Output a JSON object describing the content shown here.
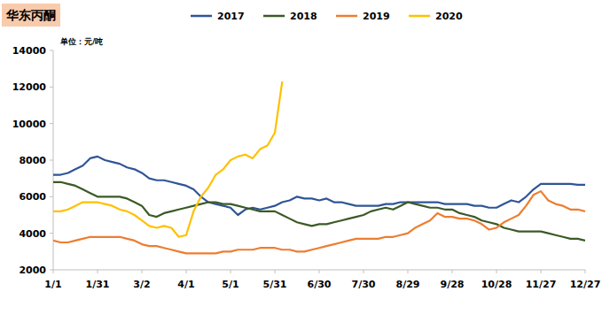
{
  "chart_data": {
    "type": "line",
    "title": "华东丙酮",
    "ylabel": "单位：元/吨",
    "legend": "top",
    "grid": false,
    "categories": [
      "1/1",
      null,
      null,
      null,
      null,
      null,
      "1/31",
      null,
      null,
      null,
      null,
      null,
      "3/2",
      null,
      null,
      null,
      null,
      null,
      "4/1",
      null,
      null,
      null,
      null,
      null,
      "5/1",
      null,
      null,
      null,
      null,
      null,
      "5/31",
      null,
      null,
      null,
      null,
      null,
      "6/30",
      null,
      null,
      null,
      null,
      null,
      "7/30",
      null,
      null,
      null,
      null,
      null,
      "8/29",
      null,
      null,
      null,
      null,
      null,
      "9/28",
      null,
      null,
      null,
      null,
      null,
      "10/28",
      null,
      null,
      null,
      null,
      null,
      "11/27",
      null,
      null,
      null,
      null,
      null,
      "12/27"
    ],
    "ylim": [
      2000,
      14000
    ],
    "yticks": [
      2000,
      4000,
      6000,
      8000,
      10000,
      12000,
      14000
    ],
    "series": [
      {
        "name": "2017",
        "color": "#2f5597",
        "values": [
          7200,
          7200,
          7300,
          7500,
          7700,
          8100,
          8200,
          8000,
          7900,
          7800,
          7600,
          7500,
          7300,
          7000,
          6900,
          6900,
          6800,
          6700,
          6600,
          6400,
          6000,
          5700,
          5600,
          5500,
          5400,
          5000,
          5300,
          5400,
          5300,
          5400,
          5500,
          5700,
          5800,
          6000,
          5900,
          5900,
          5800,
          5900,
          5700,
          5700,
          5600,
          5500,
          5500,
          5500,
          5500,
          5600,
          5600,
          5700,
          5700,
          5700,
          5700,
          5700,
          5700,
          5600,
          5600,
          5600,
          5600,
          5500,
          5500,
          5400,
          5400,
          5600,
          5800,
          5700,
          6000,
          6400,
          6700,
          6700,
          6700,
          6700,
          6700,
          6650,
          6650
        ]
      },
      {
        "name": "2018",
        "color": "#3b5a26",
        "values": [
          6800,
          6800,
          6700,
          6600,
          6400,
          6200,
          6000,
          6000,
          6000,
          6000,
          5900,
          5700,
          5500,
          5000,
          4900,
          5100,
          5200,
          5300,
          5400,
          5500,
          5600,
          5700,
          5700,
          5600,
          5600,
          5500,
          5400,
          5300,
          5200,
          5200,
          5200,
          5000,
          4800,
          4600,
          4500,
          4400,
          4500,
          4500,
          4600,
          4700,
          4800,
          4900,
          5000,
          5200,
          5300,
          5400,
          5300,
          5500,
          5700,
          5600,
          5500,
          5400,
          5400,
          5300,
          5300,
          5100,
          5000,
          4900,
          4700,
          4600,
          4500,
          4300,
          4200,
          4100,
          4100,
          4100,
          4100,
          4000,
          3900,
          3800,
          3700,
          3700,
          3600
        ]
      },
      {
        "name": "2019",
        "color": "#ed7d31",
        "values": [
          3600,
          3500,
          3500,
          3600,
          3700,
          3800,
          3800,
          3800,
          3800,
          3800,
          3700,
          3600,
          3400,
          3300,
          3300,
          3200,
          3100,
          3000,
          2900,
          2900,
          2900,
          2900,
          2900,
          3000,
          3000,
          3100,
          3100,
          3100,
          3200,
          3200,
          3200,
          3100,
          3100,
          3000,
          3000,
          3100,
          3200,
          3300,
          3400,
          3500,
          3600,
          3700,
          3700,
          3700,
          3700,
          3800,
          3800,
          3900,
          4000,
          4300,
          4500,
          4700,
          5100,
          4900,
          4900,
          4800,
          4800,
          4700,
          4500,
          4200,
          4300,
          4600,
          4800,
          5000,
          5500,
          6100,
          6300,
          5800,
          5600,
          5500,
          5300,
          5300,
          5200
        ]
      },
      {
        "name": "2020",
        "color": "#ffc000",
        "values": [
          5200,
          5200,
          5300,
          5500,
          5700,
          5700,
          5700,
          5600,
          5500,
          5300,
          5200,
          5000,
          4700,
          4400,
          4300,
          4400,
          4300,
          3800,
          3900,
          5200,
          6000,
          6500,
          7200,
          7500,
          8000,
          8200,
          8300,
          8100,
          8600,
          8800,
          9500,
          12300,
          null,
          null,
          null,
          null,
          null,
          null,
          null,
          null,
          null,
          null,
          null,
          null,
          null,
          null,
          null,
          null,
          null,
          null,
          null,
          null,
          null,
          null,
          null,
          null,
          null,
          null,
          null,
          null,
          null,
          null,
          null,
          null,
          null,
          null,
          null,
          null,
          null,
          null,
          null,
          null,
          null
        ]
      }
    ]
  }
}
